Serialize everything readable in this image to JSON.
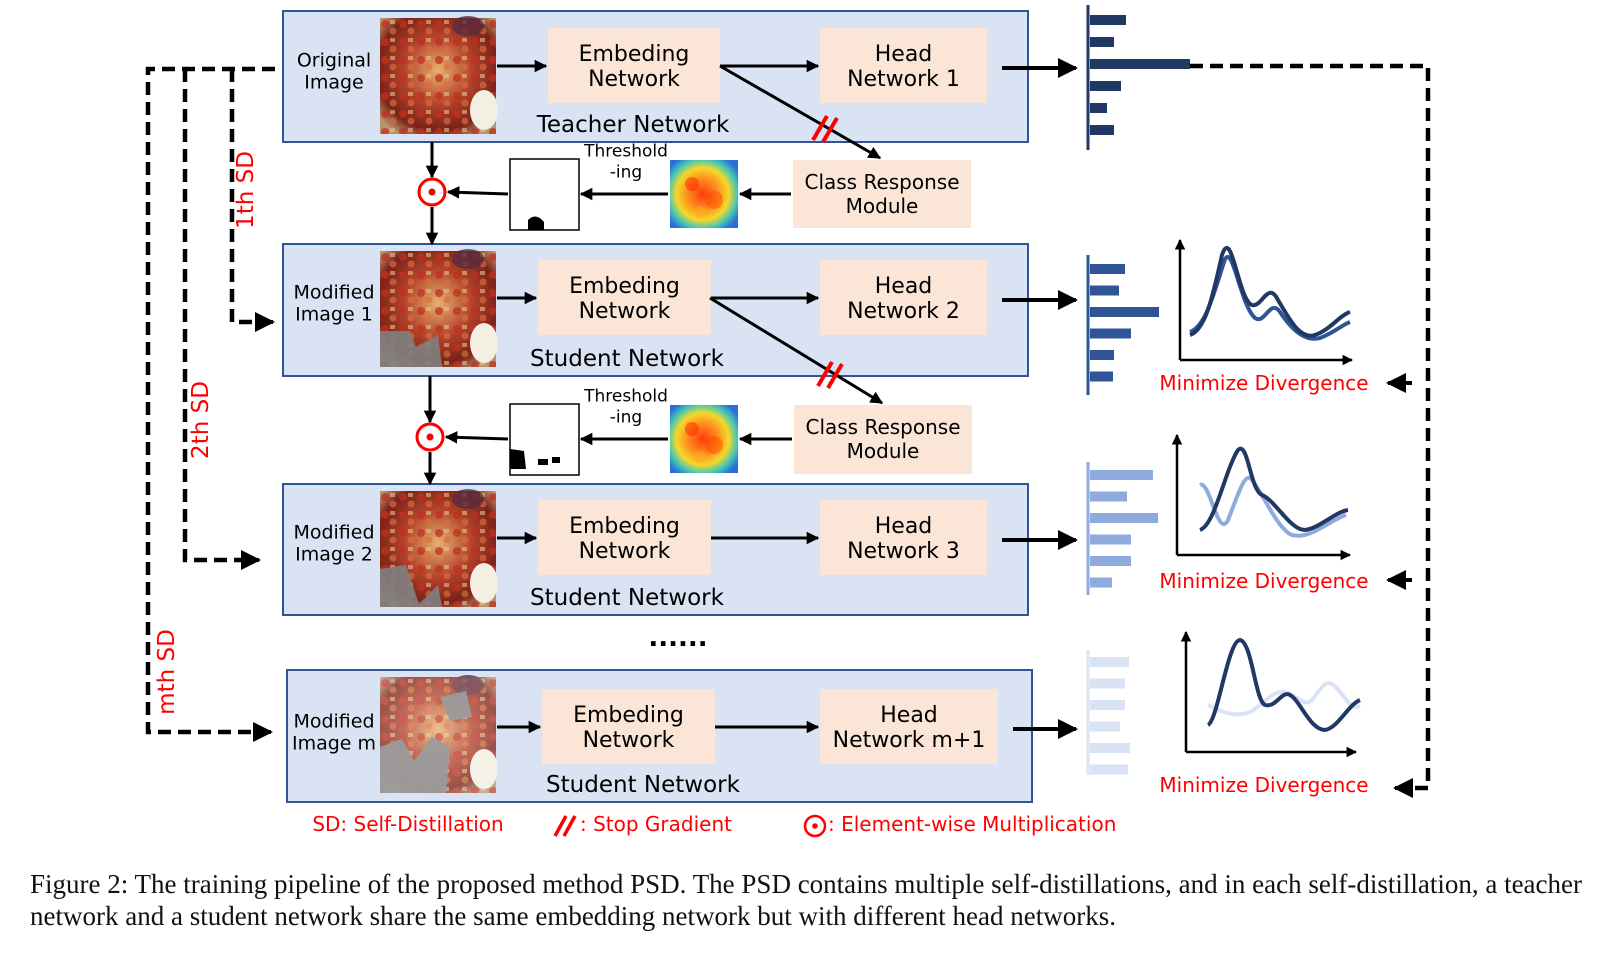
{
  "stages": [
    {
      "input_lines": [
        "Original",
        "Image"
      ],
      "embedding_lines": [
        "Embeding",
        "Network"
      ],
      "head_lines": [
        "Head",
        "Network 1"
      ],
      "network_label": "Teacher Network"
    },
    {
      "input_lines": [
        "Modified",
        "Image 1"
      ],
      "embedding_lines": [
        "Embeding",
        "Network"
      ],
      "head_lines": [
        "Head",
        "Network 2"
      ],
      "network_label": "Student Network"
    },
    {
      "input_lines": [
        "Modified",
        "Image 2"
      ],
      "embedding_lines": [
        "Embeding",
        "Network"
      ],
      "head_lines": [
        "Head",
        "Network 3"
      ],
      "network_label": "Student Network"
    },
    {
      "input_lines": [
        "Modified",
        "Image m"
      ],
      "embedding_lines": [
        "Embeding",
        "Network"
      ],
      "head_lines": [
        "Head",
        "Network m+1"
      ],
      "network_label": "Student Network"
    }
  ],
  "crm_lines": [
    "Class Response",
    "Module"
  ],
  "threshold_lines": [
    "Threshold",
    "-ing"
  ],
  "sd_labels": [
    "1th SD",
    "2th SD",
    "mth SD"
  ],
  "ellipsis": "......",
  "divergence_label": "Minimize Divergence",
  "legend": {
    "sd": "SD: Self-Distillation",
    "stop": ": Stop Gradient",
    "mult": ": Element-wise Multiplication"
  },
  "caption": "Figure 2: The training pipeline of the proposed method PSD. The PSD contains multiple self-distillations, and in each self-distillation, a teacher network and a student network share the same embedding network but with different head networks.",
  "colors": {
    "panel": "#dae3f3",
    "panel_border": "#2f5597",
    "module": "#fbe5d6",
    "red": "#ff0000",
    "bar_levels": [
      "#203864",
      "#2f5597",
      "#8faadc",
      "#dae3f3"
    ]
  }
}
